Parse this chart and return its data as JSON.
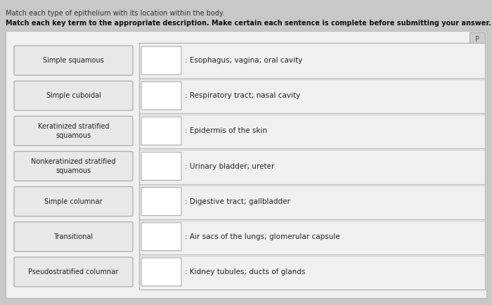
{
  "title1": "Match each type of epithelium with its location within the body.",
  "title2": "Match each key term to the appropriate description. Make certain each sentence is complete before submitting your answer.",
  "left_labels": [
    "Simple squamous",
    "Simple cuboidal",
    "Keratinized stratified\nsquamous",
    "Nonkeratinized stratified\nsquamous",
    "Simple columnar",
    "Transitional",
    "Pseudostratified columnar"
  ],
  "right_labels": [
    "Esophagus; vagina; oral cavity",
    "Respiratory tract; nasal cavity",
    "Epidermis of the skin",
    "Urinary bladder; ureter",
    "Digestive tract; gallbladder",
    "Air sacs of the lungs; glomerular capsule",
    "Kidney tubules; ducts of glands"
  ],
  "page_bg": "#c8c8c8",
  "content_bg": "#f0f0f0",
  "left_box_bg": "#e8e8e8",
  "left_box_border": "#aaaaaa",
  "right_row_bg": "#f0f0f0",
  "right_row_line": "#bbbbbb",
  "small_box_bg": "#ffffff",
  "small_box_border": "#aaaaaa",
  "text_color": "#222222",
  "title1_color": "#333333",
  "title2_color": "#111111"
}
